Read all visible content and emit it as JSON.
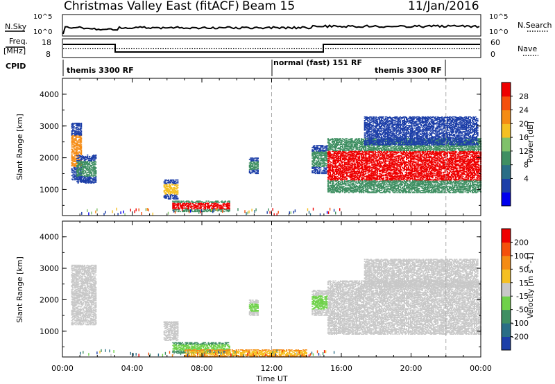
{
  "header": {
    "station": "Christmas Valley East (fitACF)",
    "beam": "Beam 15",
    "date": "11/Jan/2016"
  },
  "summary": {
    "nsky_label": "N.Sky",
    "nsky_ticks": [
      "10^5",
      "10^0"
    ],
    "nsearch_label": "N.Search",
    "nsearch_ticks": [
      "10^5",
      "10^0"
    ],
    "freq_label_1": "Freq.",
    "freq_label_2": "[MHz]",
    "freq_ticks": [
      "18",
      "8"
    ],
    "nave_label": "Nave",
    "nave_ticks": [
      "60",
      "0"
    ],
    "cpid_label": "CPID",
    "cpid_segments": [
      {
        "label": "themis 3300 RF",
        "start_hour": 0
      },
      {
        "label": "normal (fast) 151 RF",
        "start_hour": 12
      },
      {
        "label": "themis 3300 RF",
        "start_hour": 15
      }
    ]
  },
  "chart_data": [
    {
      "type": "heatmap",
      "name": "power",
      "ylabel": "Slant Range [km]",
      "xlabel": "",
      "x_range_hours": [
        0,
        24
      ],
      "ylim": [
        180,
        4500
      ],
      "y_ticks": [
        "1000",
        "2000",
        "3000",
        "4000"
      ],
      "x_ticks": [
        "00:00",
        "04:00",
        "08:00",
        "12:00",
        "16:00",
        "20:00",
        "00:00"
      ],
      "colorbar_label": "Power [dB]",
      "colorbar_ticks": [
        "28",
        "24",
        "20",
        "16",
        "12",
        "8",
        "4"
      ],
      "colorbar_colors": [
        "#0000ee",
        "#1d3fa8",
        "#2a6e86",
        "#3f8f62",
        "#7fc16a",
        "#f5c022",
        "#f58c14",
        "#f5500c",
        "#ee0000"
      ],
      "vertical_markers_hours": [
        12,
        22
      ],
      "regions": [
        {
          "t0": 0.5,
          "t1": 1.1,
          "r0": 1300,
          "r1": 3100,
          "core": "#f58c14",
          "edge": "#1d3fa8"
        },
        {
          "t0": 0.8,
          "t1": 1.9,
          "r0": 1200,
          "r1": 2100,
          "core": "#3f8f62",
          "edge": "#1d3fa8"
        },
        {
          "t0": 5.8,
          "t1": 6.6,
          "r0": 700,
          "r1": 1300,
          "core": "#f5c022",
          "edge": "#1d3fa8"
        },
        {
          "t0": 6.3,
          "t1": 9.6,
          "r0": 300,
          "r1": 650,
          "core": "#ee0000",
          "edge": "#3f8f62"
        },
        {
          "t0": 10.7,
          "t1": 11.2,
          "r0": 1500,
          "r1": 2000,
          "core": "#3f8f62",
          "edge": "#1d3fa8"
        },
        {
          "t0": 14.3,
          "t1": 15.2,
          "r0": 1500,
          "r1": 2400,
          "core": "#3f8f62",
          "edge": "#1d3fa8"
        },
        {
          "t0": 15.2,
          "t1": 24,
          "r0": 900,
          "r1": 2600,
          "core": "#ee0000",
          "edge": "#3f8f62"
        },
        {
          "t0": 17.3,
          "t1": 23.8,
          "r0": 2400,
          "r1": 3300,
          "core": "#1d3fa8",
          "edge": "#1d3fa8"
        }
      ]
    },
    {
      "type": "heatmap",
      "name": "velocity",
      "ylabel": "Slant Range [km]",
      "xlabel": "Time UT",
      "x_range_hours": [
        0,
        24
      ],
      "ylim": [
        180,
        4500
      ],
      "y_ticks": [
        "1000",
        "2000",
        "3000",
        "4000"
      ],
      "x_ticks": [
        "00:00",
        "04:00",
        "08:00",
        "12:00",
        "16:00",
        "20:00",
        "00:00"
      ],
      "colorbar_label": "Velocity [m s^-1]",
      "colorbar_ticks": [
        "200",
        "100",
        "50",
        "15",
        "-15",
        "-50",
        "-100",
        "-200"
      ],
      "colorbar_colors": [
        "#1d3fa8",
        "#2a6e86",
        "#3f8f62",
        "#6fd14a",
        "#c8c8c8",
        "#f5c022",
        "#f58c14",
        "#f5500c",
        "#ee0000"
      ],
      "vertical_markers_hours": [
        12,
        22
      ],
      "regions": [
        {
          "t0": 0.5,
          "t1": 1.9,
          "r0": 1200,
          "r1": 3100,
          "core": "#c8c8c8",
          "edge": "#c8c8c8"
        },
        {
          "t0": 5.8,
          "t1": 6.6,
          "r0": 700,
          "r1": 1300,
          "core": "#c8c8c8",
          "edge": "#c8c8c8"
        },
        {
          "t0": 6.3,
          "t1": 9.6,
          "r0": 300,
          "r1": 650,
          "core": "#6fd14a",
          "edge": "#3f8f62"
        },
        {
          "t0": 7.0,
          "t1": 14.0,
          "r0": 180,
          "r1": 420,
          "core": "#f5c022",
          "edge": "#f58c14"
        },
        {
          "t0": 10.7,
          "t1": 11.2,
          "r0": 1500,
          "r1": 2000,
          "core": "#6fd14a",
          "edge": "#c8c8c8"
        },
        {
          "t0": 14.3,
          "t1": 15.2,
          "r0": 1500,
          "r1": 2300,
          "core": "#6fd14a",
          "edge": "#c8c8c8"
        },
        {
          "t0": 15.2,
          "t1": 24,
          "r0": 900,
          "r1": 2600,
          "core": "#c8c8c8",
          "edge": "#c8c8c8"
        },
        {
          "t0": 17.3,
          "t1": 23.8,
          "r0": 2400,
          "r1": 3300,
          "core": "#c8c8c8",
          "edge": "#c8c8c8"
        }
      ]
    }
  ]
}
